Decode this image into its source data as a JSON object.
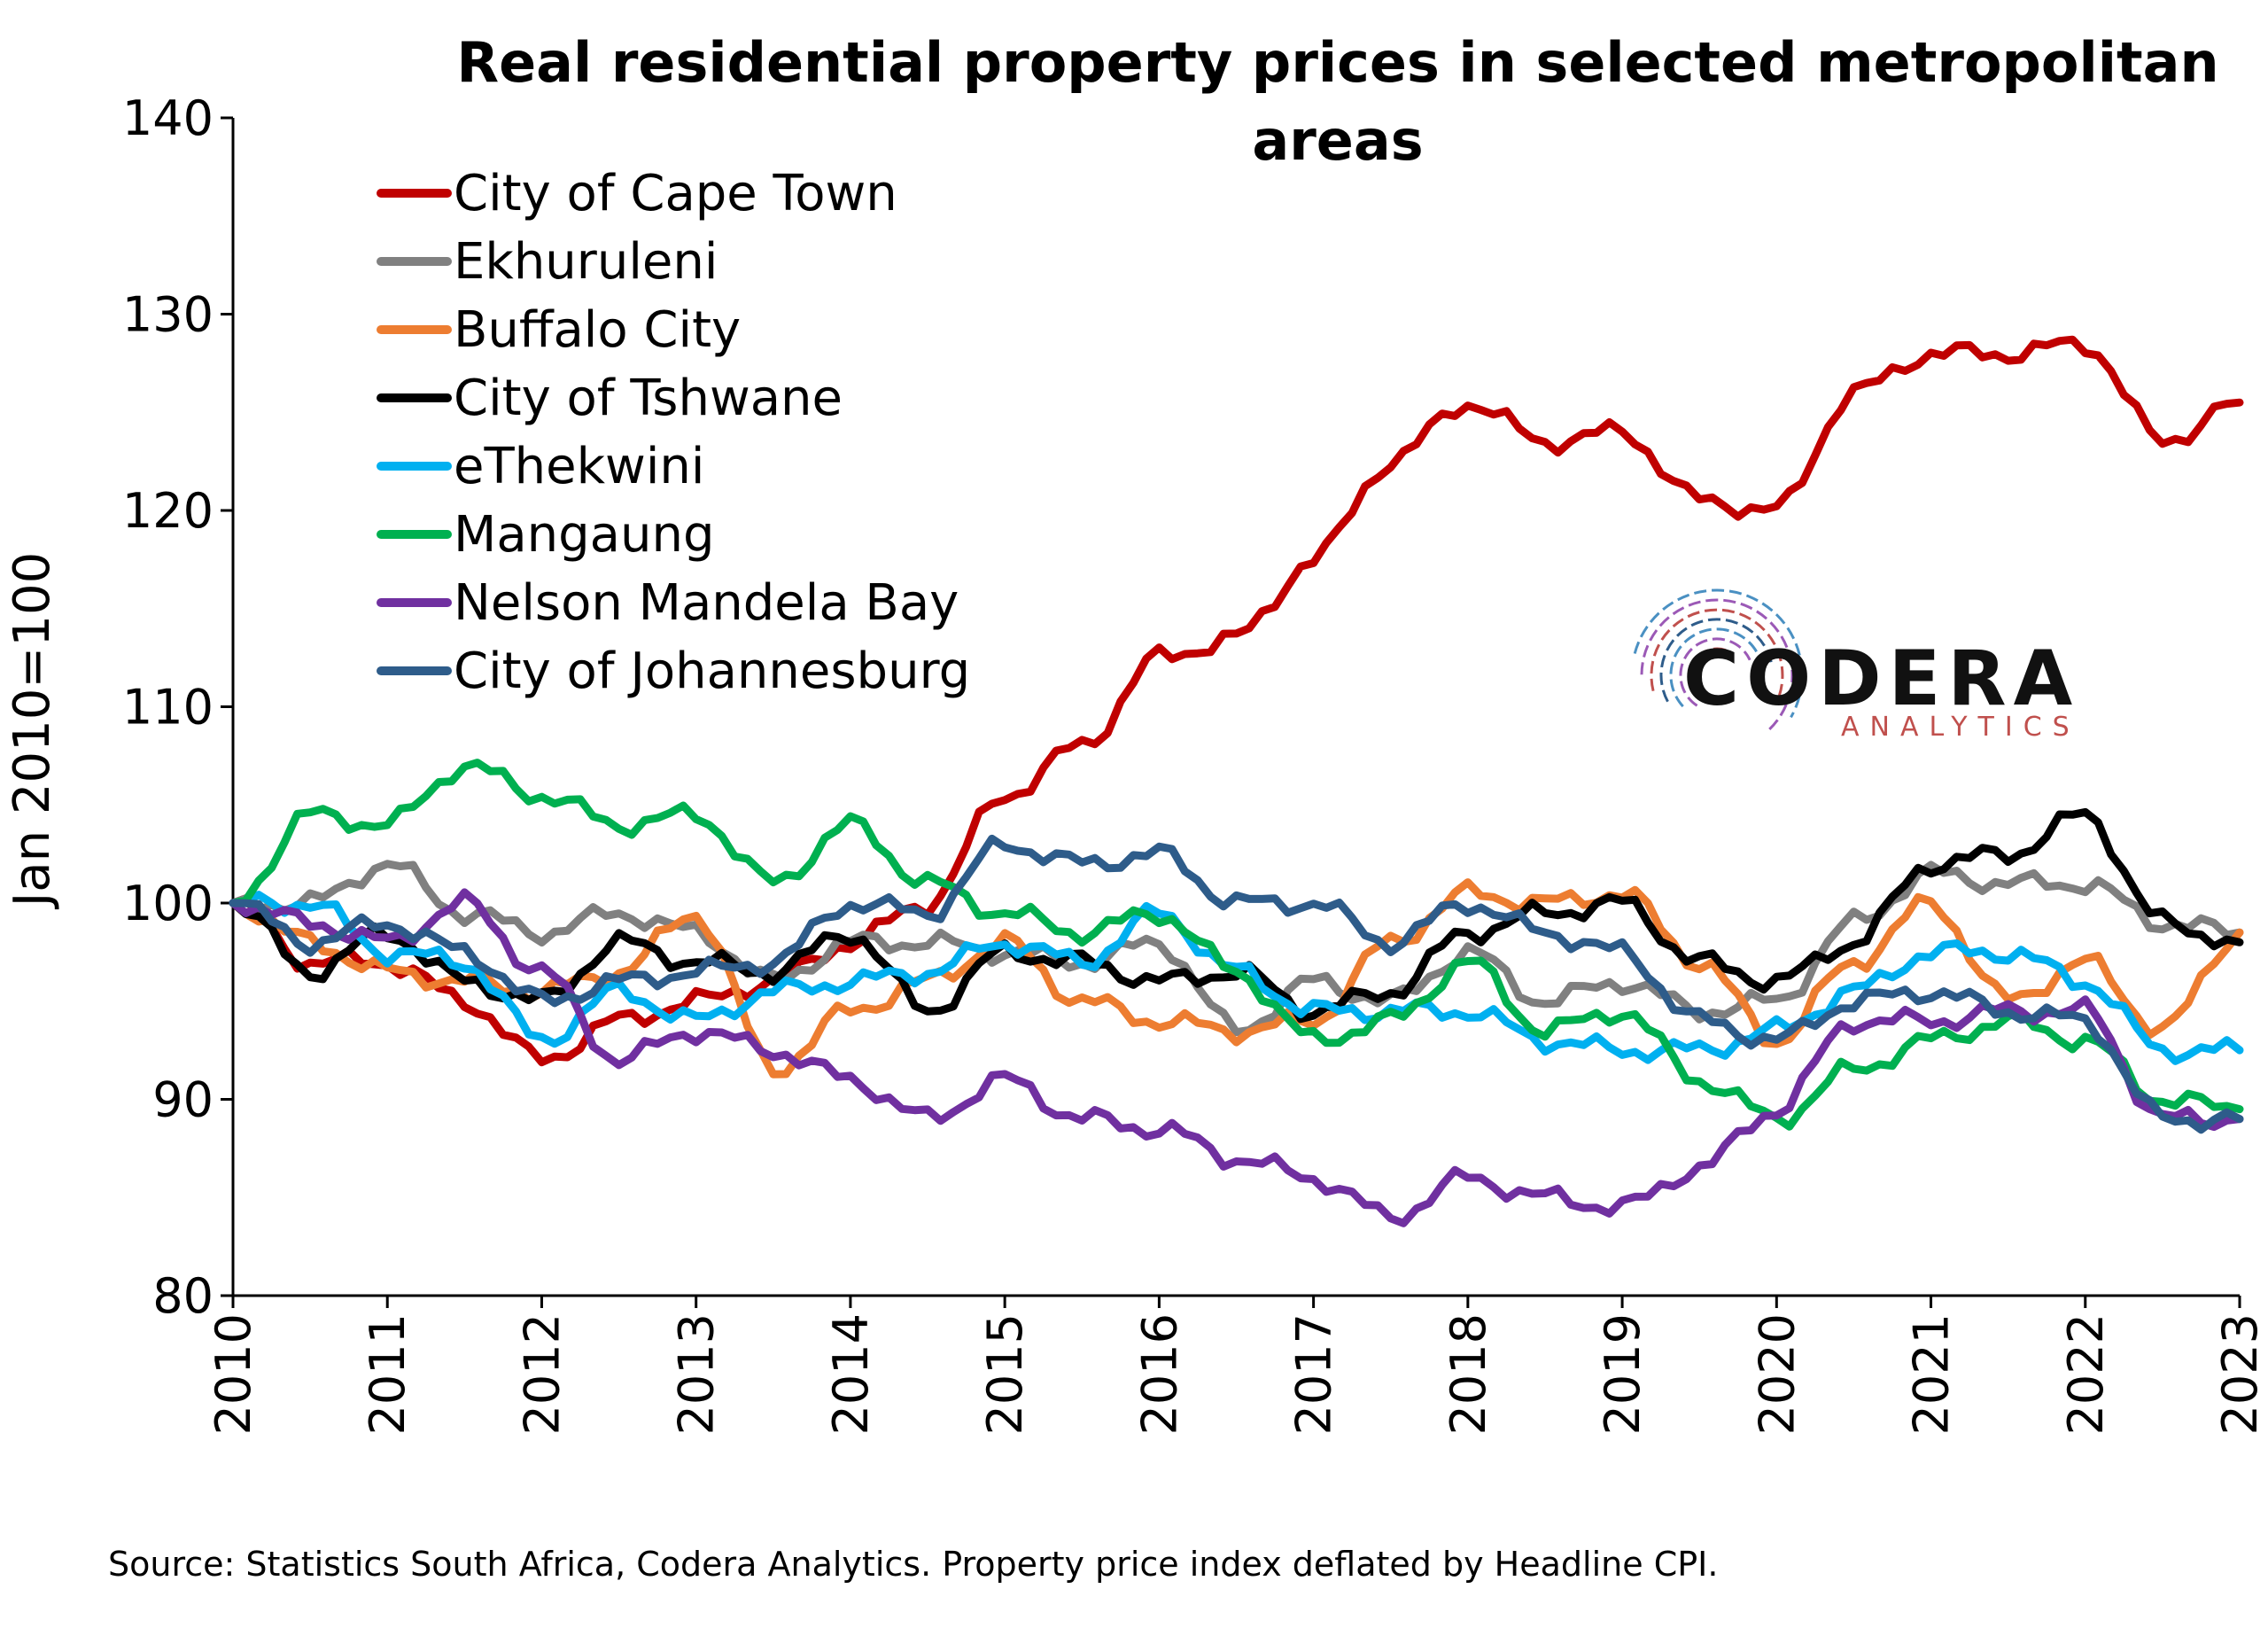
{
  "chart_data": {
    "type": "line",
    "title_lines": [
      "Real residential property prices in selected metropolitan",
      "areas"
    ],
    "ylabel": "Jan 2010=100",
    "xlabel": "",
    "ylim": [
      80,
      140
    ],
    "yticks": [
      80,
      90,
      100,
      110,
      120,
      130,
      140
    ],
    "xlim": [
      2010,
      2023
    ],
    "xticks": [
      "2010",
      "2011",
      "2012",
      "2013",
      "2014",
      "2015",
      "2016",
      "2017",
      "2018",
      "2019",
      "2020",
      "2021",
      "2022",
      "2023"
    ],
    "grid": false,
    "legend_position": "top-left",
    "source": "Source: Statistics South Africa, Codera Analytics. Property price index deflated by Headline CPI.",
    "x": [
      2010.0,
      2010.5,
      2011.0,
      2011.5,
      2012.0,
      2012.5,
      2013.0,
      2013.5,
      2014.0,
      2014.5,
      2015.0,
      2015.5,
      2016.0,
      2016.5,
      2017.0,
      2017.5,
      2018.0,
      2018.5,
      2019.0,
      2019.5,
      2020.0,
      2020.5,
      2021.0,
      2021.5,
      2022.0,
      2022.5,
      2023.0
    ],
    "series": [
      {
        "name": "City of Cape Town",
        "color": "#C00000",
        "values": [
          100,
          97,
          97,
          95,
          92,
          94,
          95,
          96,
          98,
          100,
          105.5,
          108,
          112.5,
          113.5,
          117.5,
          122.5,
          125.5,
          123.5,
          124,
          120.5,
          120,
          126,
          128,
          128,
          128.5,
          123.5,
          125.5
        ]
      },
      {
        "name": "Ekhuruleni",
        "color": "#808080",
        "values": [
          100,
          100,
          102,
          99.5,
          98.5,
          99.5,
          98.5,
          96,
          98,
          98,
          97.5,
          97,
          98,
          93.5,
          96,
          95,
          97.5,
          95,
          96,
          94.5,
          95,
          99,
          101.5,
          101,
          101,
          99,
          98.5
        ]
      },
      {
        "name": "Buffalo City",
        "color": "#ED7D31",
        "values": [
          100,
          98,
          96.5,
          96,
          95.5,
          96.5,
          99.5,
          91.5,
          94.5,
          96,
          98,
          95,
          94,
          93.5,
          94,
          98,
          100.5,
          100,
          100.5,
          97,
          93,
          97,
          100,
          95,
          97,
          93.5,
          98.5
        ]
      },
      {
        "name": "City of Tshwane",
        "color": "#000000",
        "values": [
          100,
          96.5,
          98.5,
          96,
          95,
          98,
          97,
          96.5,
          98.5,
          94.5,
          97.5,
          97,
          96,
          96.5,
          94.5,
          95.5,
          98.5,
          99.5,
          100,
          97,
          96,
          98,
          102,
          102.5,
          104.5,
          99,
          98
        ]
      },
      {
        "name": "eThekwini",
        "color": "#00B0F0",
        "values": [
          100,
          100,
          97.5,
          97,
          93,
          95.5,
          94,
          95.5,
          96,
          96.5,
          98,
          97,
          99.5,
          96.5,
          94.5,
          94.5,
          94.5,
          93,
          92.5,
          92.5,
          93.5,
          95.5,
          97.5,
          97.5,
          96,
          92.5,
          92.5
        ]
      },
      {
        "name": "Mangaung",
        "color": "#00B050",
        "values": [
          100,
          104.5,
          104,
          107,
          105.5,
          104,
          104.5,
          101,
          104,
          101,
          99.5,
          98.5,
          99.5,
          96.5,
          93,
          94,
          97,
          93.5,
          94.5,
          91,
          89,
          91.5,
          93,
          94,
          93,
          90,
          89.5
        ]
      },
      {
        "name": "Nelson Mandela Bay",
        "color": "#7030A0",
        "values": [
          100,
          99,
          98,
          100,
          96.5,
          92,
          93.5,
          92.5,
          91,
          89,
          91,
          89,
          88.5,
          87,
          86,
          84,
          86,
          85,
          84.5,
          86.5,
          89.5,
          94,
          94,
          94.5,
          94.5,
          89,
          89
        ]
      },
      {
        "name": "City of Johannesburg",
        "color": "#2E5C8A",
        "values": [
          100,
          98,
          99,
          97.5,
          95,
          96,
          96.5,
          97,
          100,
          99.5,
          103,
          102,
          102.5,
          100,
          100,
          98,
          100,
          98.5,
          97.5,
          94,
          93,
          95,
          95.5,
          94.5,
          94,
          89,
          89
        ]
      }
    ]
  },
  "logo": {
    "name": "CODERA",
    "sub": "ANALYTICS",
    "colors": [
      "#C0504D",
      "#9B59B6",
      "#4A90C2",
      "#2E5C8A"
    ]
  }
}
